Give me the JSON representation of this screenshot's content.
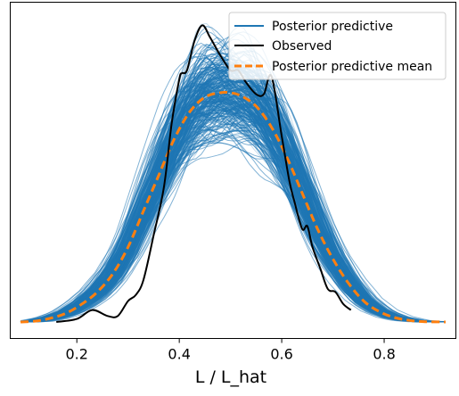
{
  "chart_data": {
    "type": "line",
    "title": "",
    "xlabel": "L / L_hat",
    "ylabel": "",
    "xlim": [
      0.07,
      0.94
    ],
    "ylim": [
      0,
      1.0
    ],
    "xticks": [
      0.2,
      0.4,
      0.6,
      0.8
    ],
    "xtick_labels": [
      "0.2",
      "0.4",
      "0.6",
      "0.8"
    ],
    "yticks": [],
    "grid": false,
    "legend_position": "top-right",
    "colors": {
      "posterior_predictive": "#1f77b4",
      "observed": "#000000",
      "posterior_predictive_mean": "#ff7f0e"
    },
    "series": [
      {
        "name": "Posterior predictive",
        "style": "solid",
        "description_points_mean_center": [
          [
            0.09,
            0.0
          ],
          [
            0.16,
            0.02
          ],
          [
            0.22,
            0.06
          ],
          [
            0.28,
            0.19
          ],
          [
            0.34,
            0.39
          ],
          [
            0.4,
            0.61
          ],
          [
            0.45,
            0.73
          ],
          [
            0.5,
            0.76
          ],
          [
            0.55,
            0.72
          ],
          [
            0.6,
            0.61
          ],
          [
            0.66,
            0.41
          ],
          [
            0.72,
            0.21
          ],
          [
            0.78,
            0.08
          ],
          [
            0.84,
            0.02
          ],
          [
            0.92,
            0.0
          ]
        ]
      },
      {
        "name": "Observed",
        "style": "solid",
        "x": [
          0.16,
          0.2,
          0.23,
          0.26,
          0.28,
          0.3,
          0.315,
          0.33,
          0.35,
          0.37,
          0.385,
          0.4,
          0.405,
          0.415,
          0.43,
          0.445,
          0.46,
          0.48,
          0.5,
          0.515,
          0.53,
          0.55,
          0.565,
          0.58,
          0.6,
          0.615,
          0.625,
          0.64,
          0.65,
          0.66,
          0.675,
          0.69,
          0.705,
          0.72,
          0.735
        ],
        "y": [
          0.0,
          0.01,
          0.04,
          0.02,
          0.02,
          0.07,
          0.09,
          0.14,
          0.29,
          0.45,
          0.66,
          0.81,
          0.83,
          0.84,
          0.94,
          0.99,
          0.95,
          0.89,
          0.84,
          0.84,
          0.8,
          0.76,
          0.76,
          0.82,
          0.62,
          0.47,
          0.4,
          0.31,
          0.32,
          0.25,
          0.18,
          0.11,
          0.1,
          0.06,
          0.04
        ]
      },
      {
        "name": "Posterior predictive mean",
        "style": "dashed",
        "x": [
          0.09,
          0.12,
          0.15,
          0.18,
          0.21,
          0.24,
          0.27,
          0.3,
          0.33,
          0.36,
          0.39,
          0.42,
          0.45,
          0.48,
          0.5,
          0.52,
          0.55,
          0.58,
          0.61,
          0.64,
          0.67,
          0.7,
          0.73,
          0.76,
          0.79,
          0.82,
          0.85,
          0.88,
          0.92
        ],
        "y": [
          0.0,
          0.003,
          0.013,
          0.03,
          0.06,
          0.1,
          0.16,
          0.25,
          0.37,
          0.49,
          0.61,
          0.7,
          0.75,
          0.765,
          0.765,
          0.755,
          0.72,
          0.65,
          0.55,
          0.43,
          0.31,
          0.21,
          0.13,
          0.07,
          0.035,
          0.015,
          0.005,
          0.001,
          0.0
        ]
      }
    ],
    "legend": [
      "Posterior predictive",
      "Observed",
      "Posterior predictive mean"
    ]
  }
}
